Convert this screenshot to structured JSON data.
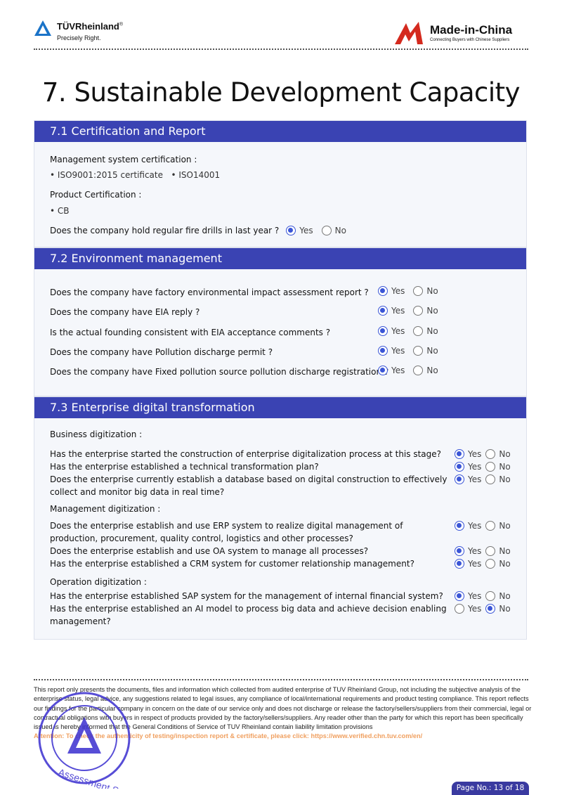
{
  "header": {
    "tuv_brand": "TÜVRheinland",
    "tuv_reg": "®",
    "tuv_tagline": "Precisely Right.",
    "mic_brand": "Made-in-China",
    "mic_tagline": "Connecting Buyers with Chinese Suppliers"
  },
  "title": "7. Sustainable Development Capacity",
  "s71": {
    "heading": "7.1 Certification and Report",
    "mgmt_label": "Management system certification :",
    "mgmt_items": [
      "ISO9001:2015 certificate",
      "ISO14001"
    ],
    "prod_label": "Product Certification :",
    "prod_items": [
      "CB"
    ],
    "fire_q": "Does the company hold regular fire drills in last year ?",
    "fire_answer": "Yes"
  },
  "s72": {
    "heading": "7.2 Environment management",
    "rows": [
      {
        "q": "Does the company have factory environmental impact assessment report ?",
        "answer": "Yes"
      },
      {
        "q": "Does the company have EIA reply ?",
        "answer": "Yes"
      },
      {
        "q": "Is the actual founding consistent with EIA acceptance comments ?",
        "answer": "Yes"
      },
      {
        "q": "Does the company have Pollution discharge permit ?",
        "answer": "Yes"
      },
      {
        "q": "Does the company have Fixed pollution source pollution discharge registration ?",
        "answer": "Yes"
      }
    ]
  },
  "s73": {
    "heading": "7.3 Enterprise digital transformation",
    "groups": [
      {
        "label": "Business digitization :",
        "rows": [
          {
            "q": "Has the enterprise started the construction of enterprise digitalization process at this stage?",
            "answer": "Yes"
          },
          {
            "q": "Has the enterprise established a technical transformation plan?",
            "answer": "Yes"
          },
          {
            "q": "Does the enterprise currently establish a database based on digital construction to effectively collect and monitor big data in real time?",
            "answer": "Yes"
          }
        ]
      },
      {
        "label": "Management digitization :",
        "rows": [
          {
            "q": "Does the enterprise establish and use ERP system to realize digital management of production, procurement, quality control, logistics and other processes?",
            "answer": "Yes"
          },
          {
            "q": "Does the enterprise establish and use OA system to manage all processes?",
            "answer": "Yes"
          },
          {
            "q": "Has the enterprise established a CRM system for customer relationship management?",
            "answer": "Yes"
          }
        ]
      },
      {
        "label": "Operation digitization :",
        "rows": [
          {
            "q": "Has the enterprise established SAP system for the management of internal financial system?",
            "answer": "Yes"
          },
          {
            "q": "Has the enterprise established an AI model to process big data and achieve decision enabling management?",
            "answer": "No"
          }
        ]
      }
    ]
  },
  "options": {
    "yes": "Yes",
    "no": "No"
  },
  "footer": {
    "disclaimer": "This report only presents the documents, files and information which collected from audited enterprise of TUV Rheinland Group, not including the subjective analysis of the enterprise status, legal advice, any suggestions related to legal issues, any compliance of local/international requirements and product testing compliance. This report reflects our findings for the particular company in concern on the date of our service only and does not discharge or release the factory/sellers/suppliers from their commercial, legal or contractual obligations with buyers in respect of products provided by the factory/sellers/suppliers. Any reader other than the party for which this report has been specifically issued is hereby informed that the General Conditions of Service of TUV Rheinland contain liability limitation provisions",
    "attention": "Attention: To check the authenticity of testing/inspection report & certificate, please click:  https://www.verified.chn.tuv.com/en/",
    "stamp_text": "TUV Rheinland Assessment Service",
    "page": "Page No.: 13 of 18"
  },
  "colors": {
    "section_header": "#3a43b3",
    "radio": "#3a55d6",
    "attention": "#f0a060",
    "mic_red": "#d42a1e",
    "tuv_blue": "#1a73c8"
  }
}
